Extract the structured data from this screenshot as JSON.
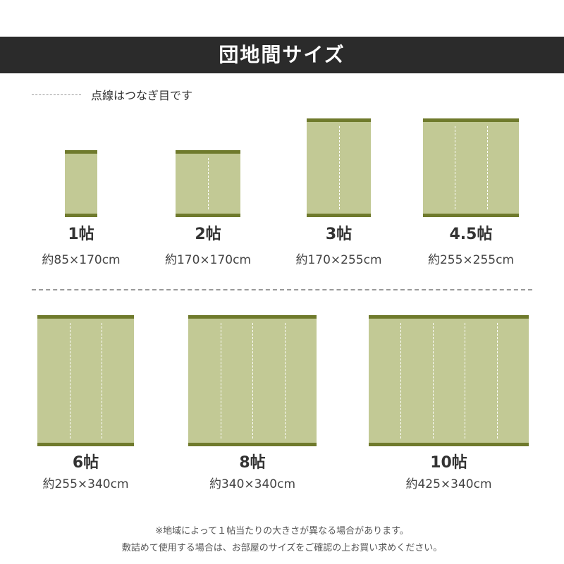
{
  "header": {
    "title": "団地間サイズ"
  },
  "legend": {
    "text": "点線はつなぎ目です"
  },
  "colors": {
    "mat": "#c2c995",
    "border": "#6f7a2c",
    "header": "#2b2b2b"
  },
  "mats": [
    {
      "label": "1帖",
      "size": "約85×170cm",
      "panels": 1
    },
    {
      "label": "2帖",
      "size": "約170×170cm",
      "panels": 2
    },
    {
      "label": "3帖",
      "size": "約170×255cm",
      "panels": 2
    },
    {
      "label": "4.5帖",
      "size": "約255×255cm",
      "panels": 3
    },
    {
      "label": "6帖",
      "size": "約255×340cm",
      "panels": 3
    },
    {
      "label": "8帖",
      "size": "約340×340cm",
      "panels": 4
    },
    {
      "label": "10帖",
      "size": "約425×340cm",
      "panels": 5
    }
  ],
  "notes": [
    "※地域によって１帖当たりの大きさが異なる場合があります。",
    "敷詰めて使用する場合は、お部屋のサイズをご確認の上お買い求めください。"
  ]
}
